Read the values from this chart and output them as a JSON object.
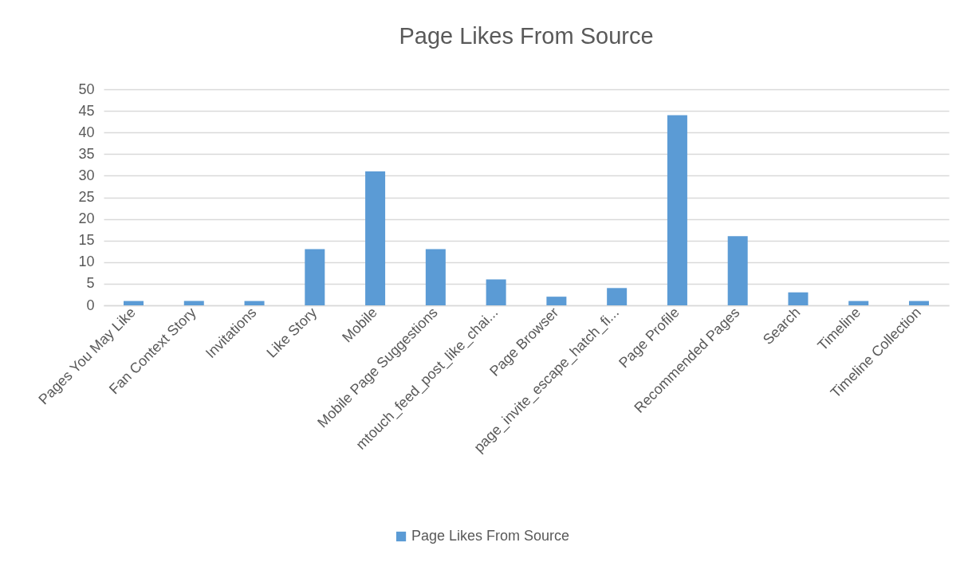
{
  "chart_data": {
    "type": "bar",
    "title": "Page Likes From Source",
    "categories": [
      "Pages You May Like",
      "Fan Context Story",
      "Invitations",
      "Like Story",
      "Mobile",
      "Mobile Page Suggestions",
      "mtouch_feed_post_like_chai...",
      "Page Browser",
      "page_invite_escape_hatch_fi...",
      "Page Profile",
      "Recommended Pages",
      "Search",
      "Timeline",
      "Timeline Collection"
    ],
    "series": [
      {
        "name": "Page Likes From Source",
        "color": "#5b9bd5",
        "values": [
          1,
          1,
          1,
          13,
          31,
          13,
          6,
          2,
          4,
          44,
          16,
          3,
          1,
          1
        ]
      }
    ],
    "ylim": [
      0,
      50
    ],
    "yticks": [
      0,
      5,
      10,
      15,
      20,
      25,
      30,
      35,
      40,
      45,
      50
    ],
    "grid": "y",
    "legend": "bottom"
  }
}
